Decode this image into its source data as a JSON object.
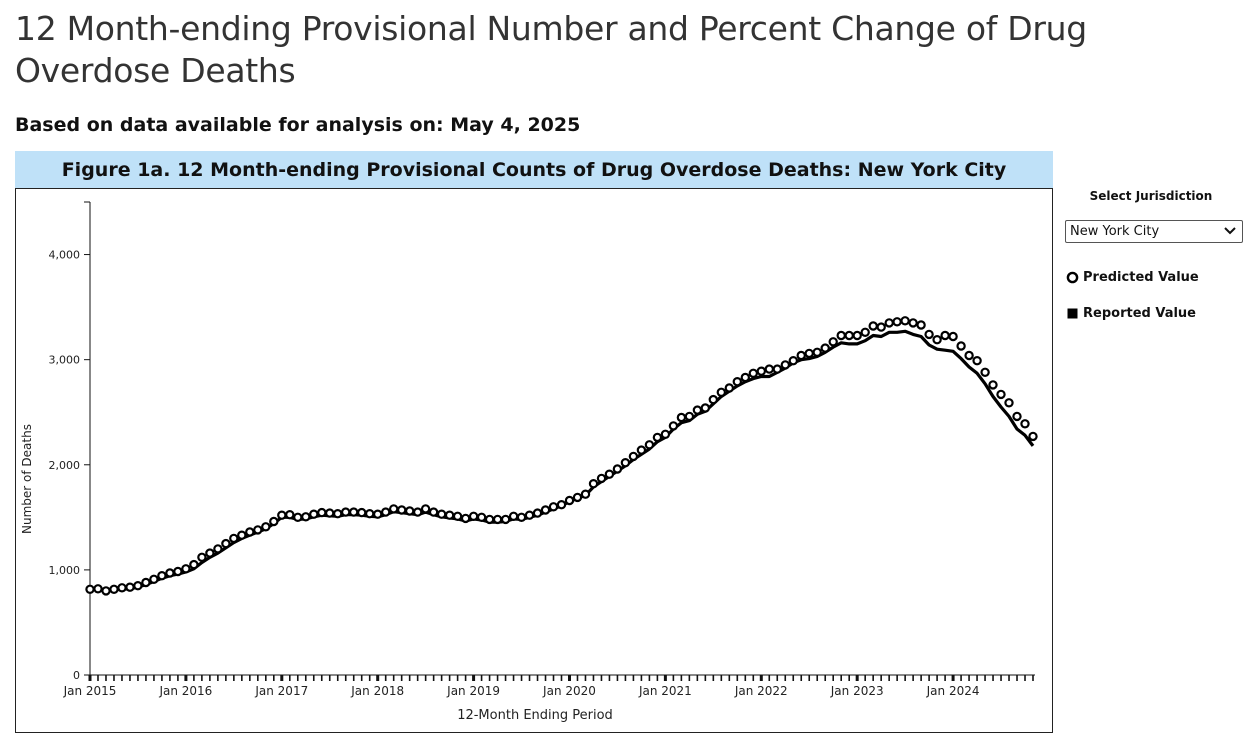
{
  "page": {
    "title": "12 Month-ending Provisional Number and Percent Change of Drug Overdose Deaths",
    "subtitle": "Based on data available for analysis on: May 4, 2025"
  },
  "figure": {
    "banner": "Figure 1a. 12 Month-ending Provisional Counts of Drug Overdose Deaths: New York City"
  },
  "controls": {
    "select_label": "Select Jurisdiction",
    "jurisdiction_value": "New York City"
  },
  "legend": {
    "predicted_label": "Predicted Value",
    "reported_label": "Reported Value"
  },
  "colors": {
    "banner_bg": "#bfe1f8",
    "line": "#000000",
    "marker_fill": "#ffffff"
  },
  "icons": {
    "select_arrow": "chevron-down-icon",
    "predicted_marker": "open-circle-icon",
    "reported_marker": "filled-square-icon"
  },
  "chart_data": {
    "type": "line",
    "title": "Figure 1a. 12 Month-ending Provisional Counts of Drug Overdose Deaths: New York City",
    "xlabel": "12-Month Ending Period",
    "ylabel": "Number of Deaths",
    "x_start": "Jan 2015",
    "x_end": "Dec 2024",
    "ylim": [
      0,
      4500
    ],
    "y_ticks": [
      0,
      1000,
      2000,
      3000,
      4000
    ],
    "y_tick_labels": [
      "0",
      "1,000",
      "2,000",
      "3,000",
      "4,000"
    ],
    "x_tick_labels": [
      "Jan 2015",
      "Jan 2016",
      "Jan 2017",
      "Jan 2018",
      "Jan 2019",
      "Jan 2020",
      "Jan 2021",
      "Jan 2022",
      "Jan 2023",
      "Jan 2024"
    ],
    "grid": false,
    "legend_position": "right",
    "series": [
      {
        "name": "Predicted Value",
        "marker": "open-circle",
        "values": [
          815,
          820,
          800,
          815,
          830,
          835,
          850,
          880,
          910,
          945,
          970,
          985,
          1010,
          1050,
          1120,
          1160,
          1200,
          1250,
          1300,
          1330,
          1360,
          1380,
          1410,
          1460,
          1520,
          1525,
          1500,
          1505,
          1530,
          1545,
          1540,
          1535,
          1550,
          1550,
          1545,
          1535,
          1530,
          1550,
          1580,
          1570,
          1560,
          1550,
          1580,
          1550,
          1530,
          1520,
          1510,
          1490,
          1510,
          1500,
          1480,
          1480,
          1480,
          1510,
          1500,
          1520,
          1540,
          1570,
          1600,
          1620,
          1660,
          1690,
          1720,
          1820,
          1870,
          1910,
          1960,
          2020,
          2080,
          2140,
          2190,
          2260,
          2290,
          2370,
          2450,
          2460,
          2520,
          2540,
          2620,
          2690,
          2730,
          2790,
          2830,
          2870,
          2890,
          2910,
          2910,
          2950,
          2990,
          3040,
          3060,
          3070,
          3110,
          3170,
          3230,
          3230,
          3230,
          3260,
          3320,
          3310,
          3350,
          3360,
          3370,
          3350,
          3330,
          3240,
          3190,
          3230,
          3220,
          3130,
          3040,
          2990,
          2880,
          2760,
          2670,
          2590,
          2460,
          2390,
          2270
        ]
      },
      {
        "name": "Reported Value",
        "marker": "line",
        "values": [
          810,
          815,
          805,
          810,
          815,
          820,
          835,
          860,
          890,
          920,
          945,
          960,
          980,
          1010,
          1070,
          1120,
          1160,
          1210,
          1260,
          1300,
          1330,
          1360,
          1390,
          1440,
          1500,
          1500,
          1480,
          1485,
          1505,
          1520,
          1515,
          1510,
          1525,
          1525,
          1520,
          1510,
          1505,
          1525,
          1555,
          1545,
          1535,
          1525,
          1550,
          1525,
          1505,
          1495,
          1485,
          1465,
          1485,
          1475,
          1455,
          1455,
          1460,
          1485,
          1480,
          1500,
          1520,
          1550,
          1580,
          1610,
          1650,
          1680,
          1710,
          1790,
          1840,
          1890,
          1940,
          1990,
          2050,
          2100,
          2150,
          2220,
          2260,
          2340,
          2400,
          2420,
          2480,
          2510,
          2580,
          2650,
          2700,
          2750,
          2790,
          2820,
          2840,
          2840,
          2880,
          2920,
          2970,
          3000,
          3010,
          3030,
          3070,
          3120,
          3160,
          3150,
          3150,
          3180,
          3230,
          3220,
          3260,
          3260,
          3270,
          3240,
          3220,
          3140,
          3100,
          3090,
          3080,
          3010,
          2930,
          2870,
          2770,
          2650,
          2550,
          2460,
          2340,
          2280,
          2180
        ]
      }
    ]
  }
}
